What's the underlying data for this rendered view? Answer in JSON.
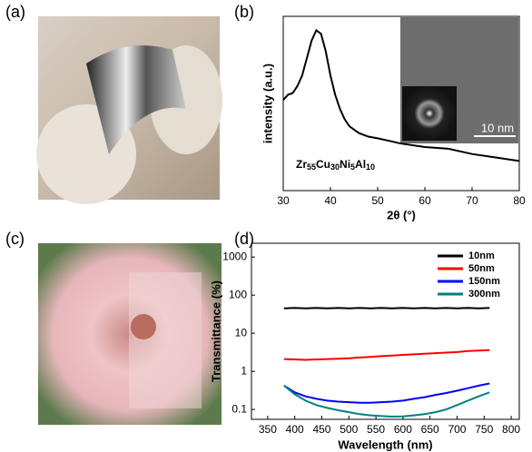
{
  "panel_labels": [
    "(a)",
    "(b)",
    "(c)",
    "(d)"
  ],
  "chart_data": [
    {
      "type": "line",
      "xlabel": "2θ (°)",
      "ylabel": "intensity (a.u.)",
      "composition": [
        [
          "Zr",
          "55"
        ],
        [
          "Cu",
          "30"
        ],
        [
          "Ni",
          "5"
        ],
        [
          "Al",
          "10"
        ]
      ],
      "inset_label": "10 nm",
      "x": [
        30,
        31,
        32,
        33,
        34,
        35,
        36,
        37,
        38,
        39,
        40,
        41,
        42,
        43,
        44,
        45,
        46,
        48,
        50,
        55,
        60,
        65,
        70,
        75,
        80
      ],
      "values": [
        0.52,
        0.55,
        0.56,
        0.6,
        0.66,
        0.76,
        0.86,
        0.92,
        0.9,
        0.8,
        0.66,
        0.55,
        0.47,
        0.41,
        0.37,
        0.35,
        0.33,
        0.31,
        0.3,
        0.27,
        0.25,
        0.24,
        0.21,
        0.19,
        0.17
      ],
      "color": "#000000",
      "xlim": [
        30,
        80
      ],
      "xticks": [
        30,
        40,
        50,
        60,
        70,
        80
      ],
      "ylim": [
        0,
        1
      ]
    },
    {
      "type": "line",
      "xlabel": "Wavelength (nm)",
      "ylabel": "Transmittance (%)",
      "log_y": true,
      "legend": "upper right",
      "x": [
        380,
        400,
        420,
        440,
        460,
        480,
        500,
        520,
        540,
        560,
        580,
        600,
        620,
        640,
        660,
        680,
        700,
        720,
        740,
        760
      ],
      "series": [
        {
          "name": "10nm",
          "color": "#000000",
          "values": [
            45,
            46,
            45,
            46,
            45,
            46,
            45,
            46,
            45,
            46,
            45,
            46,
            45,
            46,
            45,
            46,
            45,
            46,
            45,
            46
          ]
        },
        {
          "name": "50nm",
          "color": "#ff0000",
          "values": [
            2.1,
            2.05,
            2.0,
            2.05,
            2.1,
            2.15,
            2.2,
            2.3,
            2.4,
            2.5,
            2.6,
            2.7,
            2.8,
            2.9,
            3.0,
            3.1,
            3.2,
            3.4,
            3.5,
            3.6
          ]
        },
        {
          "name": "150nm",
          "color": "#0000ff",
          "values": [
            0.42,
            0.28,
            0.22,
            0.19,
            0.17,
            0.16,
            0.155,
            0.15,
            0.15,
            0.155,
            0.16,
            0.17,
            0.19,
            0.21,
            0.24,
            0.27,
            0.31,
            0.36,
            0.42,
            0.48
          ]
        },
        {
          "name": "300nm",
          "color": "#008080",
          "values": [
            0.42,
            0.25,
            0.17,
            0.13,
            0.11,
            0.095,
            0.085,
            0.075,
            0.07,
            0.067,
            0.065,
            0.066,
            0.07,
            0.075,
            0.085,
            0.1,
            0.13,
            0.17,
            0.22,
            0.28
          ]
        }
      ],
      "xlim": [
        320,
        815
      ],
      "xticks": [
        350,
        400,
        450,
        500,
        550,
        600,
        650,
        700,
        750,
        800
      ],
      "ylim": [
        0.055,
        2300
      ],
      "yticks": [
        0.1,
        1,
        10,
        100,
        1000
      ]
    }
  ]
}
